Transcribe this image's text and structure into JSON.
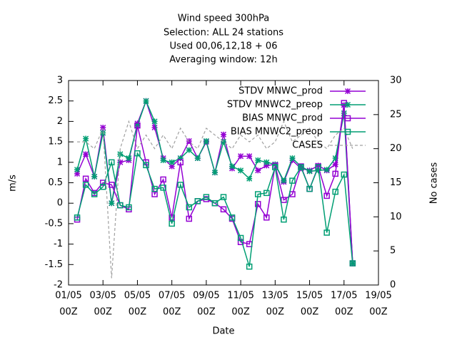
{
  "chart_data": {
    "type": "line",
    "title": [
      "Wind speed 300hPa",
      "Selection: ALL      24 stations",
      "Used  00,06,12,18 + 06",
      "Averaging window: 12h"
    ],
    "xlabel": "Date",
    "ylabel": "m/s",
    "y2label": "No cases",
    "x": [
      0.5,
      1,
      1.5,
      2,
      2.5,
      3,
      3.5,
      4,
      4.5,
      5,
      5.5,
      6,
      6.5,
      7,
      7.5,
      8,
      8.5,
      9,
      9.5,
      10,
      10.5,
      11,
      11.5,
      12,
      12.5,
      13,
      13.5,
      14,
      14.5,
      15,
      15.5,
      16,
      16.5
    ],
    "xlim": [
      0,
      18
    ],
    "xticks": [
      {
        "value": 0,
        "label": [
          "01/05",
          "00Z"
        ]
      },
      {
        "value": 2,
        "label": [
          "03/05",
          "00Z"
        ]
      },
      {
        "value": 4,
        "label": [
          "05/05",
          "00Z"
        ]
      },
      {
        "value": 6,
        "label": [
          "07/05",
          "00Z"
        ]
      },
      {
        "value": 8,
        "label": [
          "09/05",
          "00Z"
        ]
      },
      {
        "value": 10,
        "label": [
          "11/05",
          "00Z"
        ]
      },
      {
        "value": 12,
        "label": [
          "13/05",
          "00Z"
        ]
      },
      {
        "value": 14,
        "label": [
          "15/05",
          "00Z"
        ]
      },
      {
        "value": 16,
        "label": [
          "17/05",
          "00Z"
        ]
      },
      {
        "value": 18,
        "label": [
          "19/05",
          "00Z"
        ]
      }
    ],
    "ylim": [
      -2,
      3
    ],
    "yticks": [
      -2,
      -1.5,
      -1,
      -0.5,
      0,
      0.5,
      1,
      1.5,
      2,
      2.5,
      3
    ],
    "y2lim": [
      0,
      30
    ],
    "y2ticks": [
      0,
      5,
      10,
      15,
      20,
      25,
      30
    ],
    "legend": "top-right",
    "series": [
      {
        "name": "STDV MNWC_prod",
        "color": "#9400d3",
        "marker": "star",
        "values": [
          0.72,
          1.2,
          0.65,
          1.85,
          0.0,
          1.0,
          1.05,
          1.95,
          2.5,
          1.85,
          1.1,
          0.9,
          1.1,
          1.52,
          1.1,
          1.5,
          0.75,
          1.68,
          0.85,
          1.15,
          1.15,
          0.8,
          0.92,
          0.95,
          0.52,
          1.05,
          0.85,
          0.8,
          0.92,
          0.8,
          0.95,
          2.4,
          -1.47
        ]
      },
      {
        "name": "STDV MNWC2_preop",
        "color": "#009e73",
        "marker": "star",
        "values": [
          0.82,
          1.58,
          0.65,
          1.72,
          0.0,
          1.2,
          1.1,
          1.9,
          2.5,
          2.0,
          1.05,
          1.0,
          1.1,
          1.3,
          1.1,
          1.52,
          0.75,
          1.5,
          0.9,
          0.8,
          0.6,
          1.05,
          1.0,
          0.95,
          0.55,
          1.1,
          0.9,
          0.78,
          0.8,
          0.82,
          1.1,
          2.2,
          -1.47
        ]
      },
      {
        "name": "BIAS MNWC_prod",
        "color": "#9400d3",
        "marker": "square",
        "values": [
          -0.4,
          0.6,
          0.25,
          0.5,
          0.45,
          -0.05,
          -0.15,
          1.9,
          1.0,
          0.22,
          0.58,
          -0.35,
          1.0,
          -0.38,
          0.05,
          0.1,
          0.0,
          -0.15,
          -0.38,
          -0.95,
          -1.0,
          -0.02,
          -0.35,
          0.92,
          0.08,
          0.22,
          0.9,
          0.35,
          0.9,
          0.18,
          0.72,
          2.45,
          -1.47
        ]
      },
      {
        "name": "BIAS MNWC2_preop",
        "color": "#009e73",
        "marker": "square",
        "values": [
          -0.35,
          0.45,
          0.22,
          0.4,
          1.0,
          -0.05,
          -0.1,
          1.22,
          0.93,
          0.35,
          0.38,
          -0.5,
          0.45,
          -0.1,
          0.05,
          0.15,
          0.0,
          0.15,
          -0.35,
          -0.85,
          -1.55,
          0.22,
          0.25,
          0.88,
          -0.4,
          0.55,
          0.88,
          0.35,
          0.88,
          -0.72,
          0.28,
          0.7,
          -1.47
        ]
      },
      {
        "name": "CASES",
        "color": "#a0a0a0",
        "dash": true,
        "axis": "y2",
        "values": [
          21,
          21,
          20,
          23,
          1,
          20,
          24,
          20,
          22,
          20,
          22,
          20,
          23,
          21,
          20,
          23,
          22,
          21,
          20,
          22,
          21,
          22,
          20,
          21,
          24,
          21,
          22,
          23,
          21,
          20,
          22,
          23,
          20
        ]
      }
    ]
  }
}
